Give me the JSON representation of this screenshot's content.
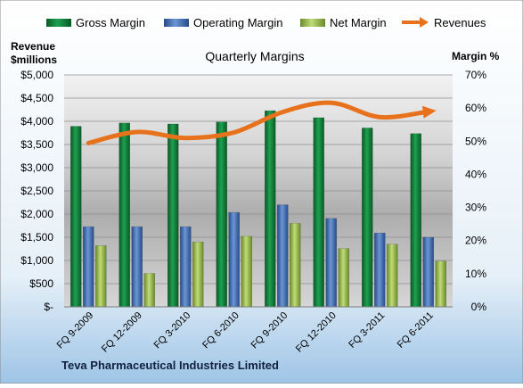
{
  "chart_data": {
    "type": "bar",
    "title": "Quarterly Margins",
    "categories": [
      "FQ 9-2009",
      "FQ 12-2009",
      "FQ 3-2010",
      "FQ 6-2010",
      "FQ 9-2010",
      "FQ 12-2010",
      "FQ 3-2011",
      "FQ 6-2011"
    ],
    "series": [
      {
        "name": "Gross Margin",
        "axis": "right",
        "unit": "%",
        "color": "#0f7a35",
        "values": [
          54.5,
          55.5,
          55.2,
          55.8,
          59.2,
          57.1,
          54.0,
          52.3
        ]
      },
      {
        "name": "Operating Margin",
        "axis": "right",
        "unit": "%",
        "color": "#3f6fb4",
        "values": [
          24.2,
          24.2,
          24.2,
          28.5,
          30.8,
          26.7,
          22.3,
          21.0
        ]
      },
      {
        "name": "Net Margin",
        "axis": "right",
        "unit": "%",
        "color": "#93b748",
        "values": [
          18.5,
          10.1,
          19.6,
          21.3,
          25.2,
          17.6,
          18.9,
          13.8
        ]
      },
      {
        "name": "Revenues",
        "type": "line",
        "axis": "left",
        "unit": "$millions",
        "color": "#e8711c",
        "values": [
          3530,
          3770,
          3640,
          3760,
          4200,
          4400,
          4090,
          4210
        ]
      }
    ],
    "left_axis": {
      "label_line1": "Revenue",
      "label_line2": "$millions",
      "ylim": [
        0,
        5000
      ],
      "ticks": [
        "$-",
        "$500",
        "$1,000",
        "$1,500",
        "$2,000",
        "$2,500",
        "$3,000",
        "$3,500",
        "$4,000",
        "$4,500",
        "$5,000"
      ]
    },
    "right_axis": {
      "label": "Margin %",
      "ylim": [
        0,
        70
      ],
      "ticks": [
        "0%",
        "10%",
        "20%",
        "30%",
        "40%",
        "50%",
        "60%",
        "70%"
      ]
    },
    "legend_position": "top",
    "grid": true,
    "footer": "Teva Pharmaceutical Industries Limited"
  }
}
